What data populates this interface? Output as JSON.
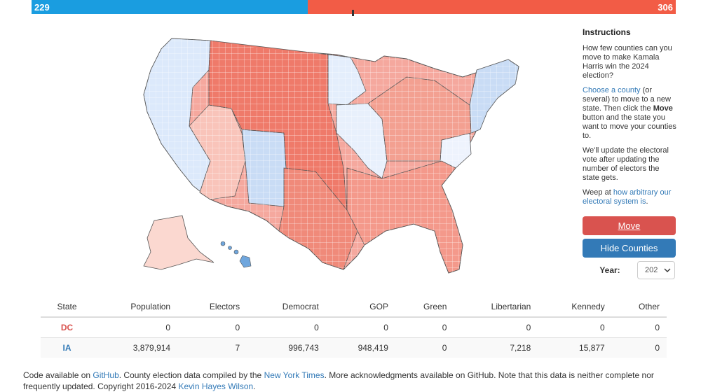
{
  "colors": {
    "dem": "#1a9de0",
    "gop": "#f25c46",
    "move_button": "#d9534f",
    "hide_button": "#337ab7",
    "link": "#337ab7"
  },
  "electoral_bar": {
    "dem_votes": "229",
    "gop_votes": "306"
  },
  "sidebar": {
    "heading": "Instructions",
    "intro": "How few counties can you move to make Kamala Harris win the 2024 election?",
    "step_link": "Choose a county",
    "step_rest_1": " (or several) to move to a new state. Then click the ",
    "step_move_word": "Move",
    "step_rest_2": " button and the state you want to move your counties to.",
    "update_text": "We'll update the electoral vote after updating the number of electors the state gets.",
    "weep_prefix": "Weep at ",
    "weep_link": "how arbitrary our electoral system is",
    "weep_suffix": ".",
    "move_button": "Move",
    "hide_button": "Hide Counties",
    "year_label": "Year:",
    "year_value": "202"
  },
  "table": {
    "headers": [
      "State",
      "Population",
      "Electors",
      "Democrat",
      "GOP",
      "Green",
      "Libertarian",
      "Kennedy",
      "Other"
    ],
    "rows": [
      {
        "state": "DC",
        "population": "0",
        "electors": "0",
        "democrat": "0",
        "gop": "0",
        "green": "0",
        "libertarian": "0",
        "kennedy": "0",
        "other": "0"
      },
      {
        "state": "IA",
        "population": "3,879,914",
        "electors": "7",
        "democrat": "996,743",
        "gop": "948,419",
        "green": "0",
        "libertarian": "7,218",
        "kennedy": "15,877",
        "other": "0"
      }
    ]
  },
  "footer": {
    "t1": "Code available on ",
    "github_link": "GitHub",
    "t2": ". County election data compiled by the ",
    "nyt_link": "New York Times",
    "t3": ". More acknowledgments available on GitHub. Note that this data is neither complete nor frequently updated. Copyright 2016-2024 ",
    "author_link": "Kevin Hayes Wilson",
    "t4": "."
  }
}
